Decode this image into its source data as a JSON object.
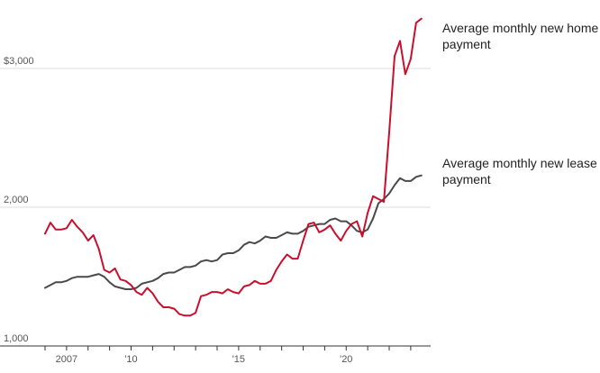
{
  "chart_data": {
    "type": "line",
    "title": "",
    "xlabel": "",
    "ylabel": "",
    "ylim": [
      1000,
      3300
    ],
    "xlim": [
      2006.0,
      2023.8
    ],
    "grid": true,
    "legend": "direct-labels-right",
    "y_ticks": [
      {
        "value": 1000,
        "label": "1,000"
      },
      {
        "value": 2000,
        "label": "2,000"
      },
      {
        "value": 3000,
        "label": "$3,000"
      }
    ],
    "x_ticks": [
      {
        "value": 2007,
        "label": "2007"
      },
      {
        "value": 2010,
        "label": "'10"
      },
      {
        "value": 2015,
        "label": "'15"
      },
      {
        "value": 2020,
        "label": "'20"
      }
    ],
    "series": [
      {
        "name": "Average monthly new home payment",
        "color": "#c8102e",
        "points": [
          [
            2006.0,
            1770
          ],
          [
            2006.25,
            1850
          ],
          [
            2006.5,
            1800
          ],
          [
            2006.75,
            1800
          ],
          [
            2007.0,
            1810
          ],
          [
            2007.25,
            1870
          ],
          [
            2007.5,
            1820
          ],
          [
            2007.75,
            1780
          ],
          [
            2008.0,
            1720
          ],
          [
            2008.25,
            1760
          ],
          [
            2008.5,
            1660
          ],
          [
            2008.75,
            1510
          ],
          [
            2009.0,
            1490
          ],
          [
            2009.25,
            1520
          ],
          [
            2009.5,
            1440
          ],
          [
            2009.75,
            1430
          ],
          [
            2010.0,
            1400
          ],
          [
            2010.25,
            1350
          ],
          [
            2010.5,
            1330
          ],
          [
            2010.75,
            1380
          ],
          [
            2011.0,
            1340
          ],
          [
            2011.25,
            1280
          ],
          [
            2011.5,
            1240
          ],
          [
            2011.75,
            1240
          ],
          [
            2012.0,
            1230
          ],
          [
            2012.25,
            1190
          ],
          [
            2012.5,
            1180
          ],
          [
            2012.75,
            1180
          ],
          [
            2013.0,
            1200
          ],
          [
            2013.25,
            1320
          ],
          [
            2013.5,
            1330
          ],
          [
            2013.75,
            1350
          ],
          [
            2014.0,
            1350
          ],
          [
            2014.25,
            1340
          ],
          [
            2014.5,
            1370
          ],
          [
            2014.75,
            1350
          ],
          [
            2015.0,
            1340
          ],
          [
            2015.25,
            1390
          ],
          [
            2015.5,
            1400
          ],
          [
            2015.75,
            1430
          ],
          [
            2016.0,
            1410
          ],
          [
            2016.25,
            1410
          ],
          [
            2016.5,
            1430
          ],
          [
            2016.75,
            1510
          ],
          [
            2017.0,
            1570
          ],
          [
            2017.25,
            1620
          ],
          [
            2017.5,
            1590
          ],
          [
            2017.75,
            1590
          ],
          [
            2018.0,
            1720
          ],
          [
            2018.25,
            1840
          ],
          [
            2018.5,
            1850
          ],
          [
            2018.75,
            1780
          ],
          [
            2019.0,
            1800
          ],
          [
            2019.25,
            1830
          ],
          [
            2019.5,
            1770
          ],
          [
            2019.75,
            1720
          ],
          [
            2020.0,
            1790
          ],
          [
            2020.25,
            1840
          ],
          [
            2020.5,
            1860
          ],
          [
            2020.75,
            1750
          ],
          [
            2021.0,
            1920
          ],
          [
            2021.25,
            2040
          ],
          [
            2021.5,
            2020
          ],
          [
            2021.75,
            2000
          ],
          [
            2022.0,
            2500
          ],
          [
            2022.25,
            3050
          ],
          [
            2022.5,
            3160
          ],
          [
            2022.75,
            2920
          ],
          [
            2023.0,
            3030
          ],
          [
            2023.25,
            3290
          ],
          [
            2023.5,
            3320
          ]
        ]
      },
      {
        "name": "Average monthly new lease payment",
        "color": "#4a4a4a",
        "points": [
          [
            2006.0,
            1380
          ],
          [
            2006.25,
            1400
          ],
          [
            2006.5,
            1420
          ],
          [
            2006.75,
            1420
          ],
          [
            2007.0,
            1430
          ],
          [
            2007.25,
            1450
          ],
          [
            2007.5,
            1460
          ],
          [
            2007.75,
            1460
          ],
          [
            2008.0,
            1460
          ],
          [
            2008.25,
            1470
          ],
          [
            2008.5,
            1480
          ],
          [
            2008.75,
            1460
          ],
          [
            2009.0,
            1420
          ],
          [
            2009.25,
            1390
          ],
          [
            2009.5,
            1380
          ],
          [
            2009.75,
            1370
          ],
          [
            2010.0,
            1370
          ],
          [
            2010.25,
            1380
          ],
          [
            2010.5,
            1410
          ],
          [
            2010.75,
            1420
          ],
          [
            2011.0,
            1430
          ],
          [
            2011.25,
            1450
          ],
          [
            2011.5,
            1480
          ],
          [
            2011.75,
            1490
          ],
          [
            2012.0,
            1490
          ],
          [
            2012.25,
            1510
          ],
          [
            2012.5,
            1530
          ],
          [
            2012.75,
            1530
          ],
          [
            2013.0,
            1540
          ],
          [
            2013.25,
            1570
          ],
          [
            2013.5,
            1580
          ],
          [
            2013.75,
            1570
          ],
          [
            2014.0,
            1580
          ],
          [
            2014.25,
            1620
          ],
          [
            2014.5,
            1630
          ],
          [
            2014.75,
            1630
          ],
          [
            2015.0,
            1650
          ],
          [
            2015.25,
            1690
          ],
          [
            2015.5,
            1710
          ],
          [
            2015.75,
            1700
          ],
          [
            2016.0,
            1720
          ],
          [
            2016.25,
            1750
          ],
          [
            2016.5,
            1740
          ],
          [
            2016.75,
            1740
          ],
          [
            2017.0,
            1760
          ],
          [
            2017.25,
            1780
          ],
          [
            2017.5,
            1770
          ],
          [
            2017.75,
            1770
          ],
          [
            2018.0,
            1790
          ],
          [
            2018.25,
            1820
          ],
          [
            2018.5,
            1830
          ],
          [
            2018.75,
            1840
          ],
          [
            2019.0,
            1840
          ],
          [
            2019.25,
            1870
          ],
          [
            2019.5,
            1880
          ],
          [
            2019.75,
            1860
          ],
          [
            2020.0,
            1860
          ],
          [
            2020.25,
            1830
          ],
          [
            2020.5,
            1790
          ],
          [
            2020.75,
            1780
          ],
          [
            2021.0,
            1800
          ],
          [
            2021.25,
            1880
          ],
          [
            2021.5,
            1990
          ],
          [
            2021.75,
            2020
          ],
          [
            2022.0,
            2060
          ],
          [
            2022.25,
            2120
          ],
          [
            2022.5,
            2170
          ],
          [
            2022.75,
            2150
          ],
          [
            2023.0,
            2150
          ],
          [
            2023.25,
            2180
          ],
          [
            2023.5,
            2190
          ]
        ]
      }
    ],
    "labels": {
      "home": [
        "Average monthly new home",
        "payment"
      ],
      "lease": [
        "Average monthly new lease",
        "payment"
      ]
    }
  }
}
